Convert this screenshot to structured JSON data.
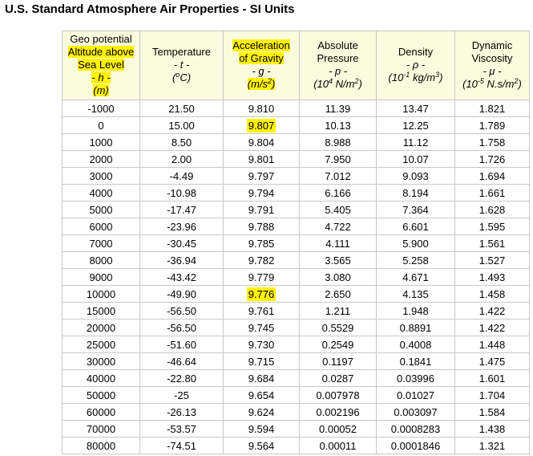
{
  "title": "U.S. Standard Atmosphere Air Properties - SI Units",
  "headers": {
    "altitude": {
      "l1": "Geo potential",
      "l2": "Altitude above",
      "l3": "Sea Level",
      "l4": "- h -",
      "l5": "(m)"
    },
    "temperature": {
      "l1": "Temperature",
      "l2": "- t -",
      "l3": "(",
      "deg": "o",
      "l3b": "C)"
    },
    "gravity": {
      "l1": "Acceleration",
      "l2": "of Gravity",
      "l3": "- g -",
      "l4a": "(m/s",
      "exp": "2",
      "l4b": ")"
    },
    "pressure": {
      "l1": "Absolute",
      "l2": "Pressure",
      "l3": "- p -",
      "l4a": "(10",
      "exp": "4",
      "l4b": " N/m",
      "exp2": "2",
      "l4c": ")"
    },
    "density": {
      "l1": "Density",
      "l2": "- ρ -",
      "l3a": "(10",
      "exp": "-1",
      "l3b": " kg/m",
      "exp2": "3",
      "l3c": ")"
    },
    "viscosity": {
      "l1": "Dynamic",
      "l2": "Viscosity",
      "l3": "- μ -",
      "l4a": "(10",
      "exp": "-5",
      "l4b": " N.s/m",
      "exp2": "2",
      "l4c": ")"
    }
  },
  "highlight_color": "#fff200",
  "header_background": "#fbfbdd",
  "rows": [
    [
      "-1000",
      "21.50",
      "9.810",
      "11.39",
      "13.47",
      "1.821"
    ],
    [
      "0",
      "15.00",
      "9.807",
      "10.13",
      "12.25",
      "1.789"
    ],
    [
      "1000",
      "8.50",
      "9.804",
      "8.988",
      "11.12",
      "1.758"
    ],
    [
      "2000",
      "2.00",
      "9.801",
      "7.950",
      "10.07",
      "1.726"
    ],
    [
      "3000",
      "-4.49",
      "9.797",
      "7.012",
      "9.093",
      "1.694"
    ],
    [
      "4000",
      "-10.98",
      "9.794",
      "6.166",
      "8.194",
      "1.661"
    ],
    [
      "5000",
      "-17.47",
      "9.791",
      "5.405",
      "7.364",
      "1.628"
    ],
    [
      "6000",
      "-23.96",
      "9.788",
      "4.722",
      "6.601",
      "1.595"
    ],
    [
      "7000",
      "-30.45",
      "9.785",
      "4.111",
      "5.900",
      "1.561"
    ],
    [
      "8000",
      "-36.94",
      "9.782",
      "3.565",
      "5.258",
      "1.527"
    ],
    [
      "9000",
      "-43.42",
      "9.779",
      "3.080",
      "4.671",
      "1.493"
    ],
    [
      "10000",
      "-49.90",
      "9.776",
      "2.650",
      "4.135",
      "1.458"
    ],
    [
      "15000",
      "-56.50",
      "9.761",
      "1.211",
      "1.948",
      "1.422"
    ],
    [
      "20000",
      "-56.50",
      "9.745",
      "0.5529",
      "0.8891",
      "1.422"
    ],
    [
      "25000",
      "-51.60",
      "9.730",
      "0.2549",
      "0.4008",
      "1.448"
    ],
    [
      "30000",
      "-46.64",
      "9.715",
      "0.1197",
      "0.1841",
      "1.475"
    ],
    [
      "40000",
      "-22.80",
      "9.684",
      "0.0287",
      "0.03996",
      "1.601"
    ],
    [
      "50000",
      "-25",
      "9.654",
      "0.007978",
      "0.01027",
      "1.704"
    ],
    [
      "60000",
      "-26.13",
      "9.624",
      "0.002196",
      "0.003097",
      "1.584"
    ],
    [
      "70000",
      "-53.57",
      "9.594",
      "0.00052",
      "0.0008283",
      "1.438"
    ],
    [
      "80000",
      "-74.51",
      "9.564",
      "0.00011",
      "0.0001846",
      "1.321"
    ]
  ],
  "highlighted_cells": [
    [
      1,
      2
    ],
    [
      11,
      2
    ]
  ]
}
